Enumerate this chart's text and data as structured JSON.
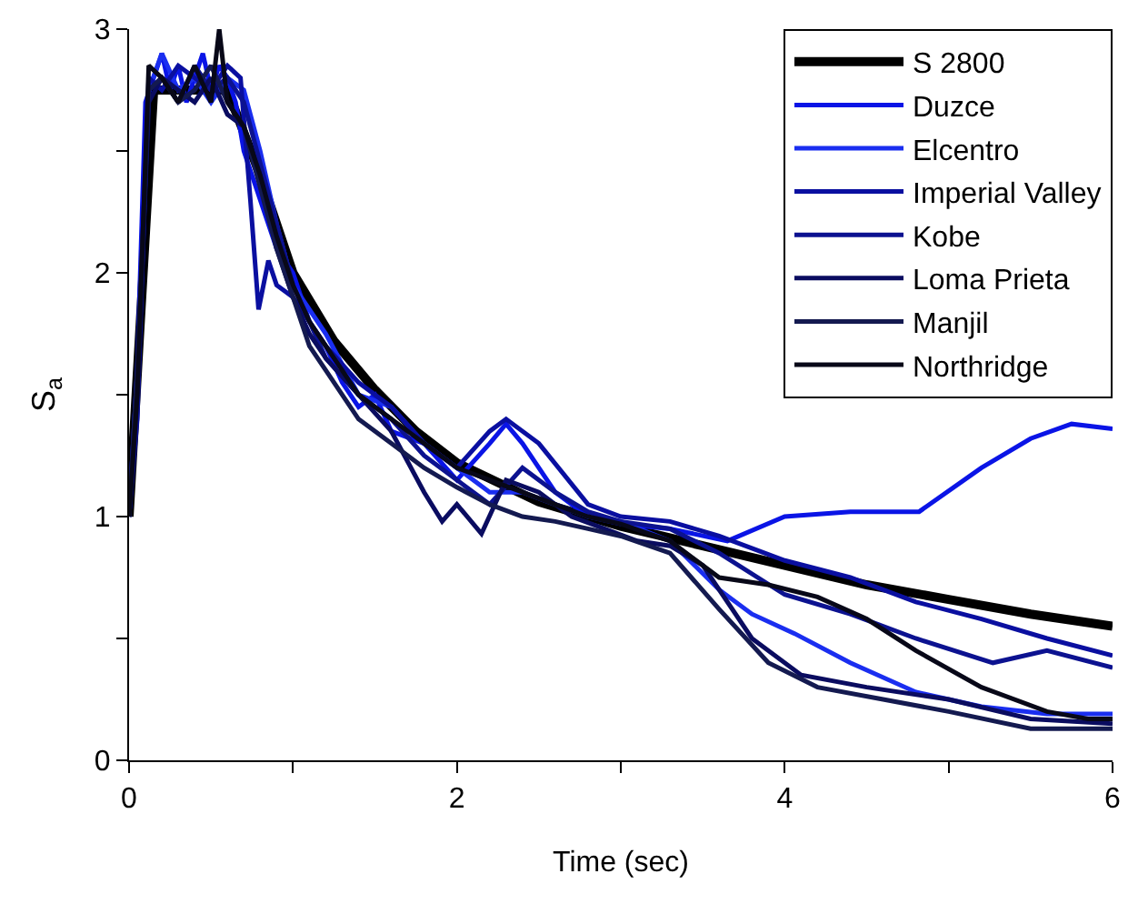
{
  "chart_data": {
    "type": "line",
    "xlabel": "Time (sec)",
    "ylabel": "S$_{a}$",
    "xlim": [
      0,
      6
    ],
    "xticks": [
      0,
      {
        "value": 1,
        "label": null
      },
      2,
      {
        "value": 3,
        "label": null
      },
      4,
      {
        "value": 5,
        "label": null
      },
      6
    ],
    "ylim": [
      0,
      3
    ],
    "yticks": [
      0,
      {
        "value": 0.5,
        "label": null
      },
      1,
      {
        "value": 1.5,
        "label": null
      },
      2,
      {
        "value": 2.5,
        "label": null
      },
      3
    ],
    "grid": false,
    "legend": "top right",
    "marker": "none",
    "line_style": "solid",
    "series": [
      {
        "name": "S 2800",
        "color": "#000000",
        "x": [
          0,
          0.15,
          0.6,
          0.8,
          1.0,
          1.25,
          1.5,
          1.75,
          2,
          2.5,
          3,
          3.5,
          4,
          4.5,
          5,
          5.5,
          6
        ],
        "values": [
          1.0,
          2.75,
          2.75,
          2.4,
          2.0,
          1.72,
          1.52,
          1.35,
          1.22,
          1.06,
          0.96,
          0.88,
          0.8,
          0.72,
          0.66,
          0.6,
          0.55
        ]
      },
      {
        "name": "Duzce",
        "color": "#0a14e6",
        "x": [
          0,
          0.05,
          0.1,
          0.15,
          0.2,
          0.25,
          0.3,
          0.35,
          0.4,
          0.45,
          0.5,
          0.55,
          0.6,
          0.65,
          0.7,
          0.8,
          0.9,
          1.0,
          1.1,
          1.2,
          1.3,
          1.4,
          1.5,
          1.6,
          1.8,
          2.0,
          2.2,
          2.3,
          2.4,
          2.6,
          2.8,
          3.0,
          3.3,
          3.65,
          4.0,
          4.4,
          4.82,
          5.2,
          5.5,
          5.75,
          6.0
        ],
        "values": [
          1.0,
          1.6,
          2.7,
          2.8,
          2.9,
          2.75,
          2.85,
          2.7,
          2.8,
          2.9,
          2.75,
          2.85,
          2.8,
          2.7,
          2.5,
          2.3,
          2.1,
          2.0,
          1.8,
          1.7,
          1.55,
          1.45,
          1.5,
          1.35,
          1.3,
          1.15,
          1.3,
          1.38,
          1.3,
          1.1,
          1.0,
          0.97,
          0.95,
          0.9,
          1.0,
          1.02,
          1.02,
          1.2,
          1.32,
          1.38,
          1.36
        ]
      },
      {
        "name": "Elcentro",
        "color": "#1a2ef0",
        "x": [
          0,
          0.05,
          0.12,
          0.2,
          0.3,
          0.4,
          0.5,
          0.6,
          0.7,
          0.8,
          0.9,
          1.0,
          1.2,
          1.4,
          1.6,
          1.8,
          2.0,
          2.2,
          2.4,
          2.6,
          2.8,
          3.0,
          3.3,
          3.6,
          3.8,
          4.06,
          4.4,
          4.8,
          5.2,
          5.6,
          6.0
        ],
        "values": [
          1.0,
          1.5,
          2.75,
          2.9,
          2.75,
          2.8,
          2.7,
          2.8,
          2.75,
          2.5,
          2.2,
          1.95,
          1.75,
          1.5,
          1.45,
          1.3,
          1.2,
          1.1,
          1.1,
          1.05,
          1.0,
          0.98,
          0.9,
          0.7,
          0.6,
          0.52,
          0.4,
          0.28,
          0.22,
          0.19,
          0.19
        ]
      },
      {
        "name": "Imperial Valley",
        "color": "#0a0fa0",
        "x": [
          0,
          0.05,
          0.12,
          0.2,
          0.3,
          0.4,
          0.5,
          0.6,
          0.68,
          0.74,
          0.79,
          0.85,
          0.9,
          1.0,
          1.1,
          1.2,
          1.4,
          1.6,
          1.8,
          2.0,
          2.2,
          2.3,
          2.5,
          2.8,
          3.0,
          3.3,
          3.6,
          4.0,
          4.4,
          4.8,
          5.2,
          5.6,
          6.0
        ],
        "values": [
          1.0,
          1.4,
          2.8,
          2.75,
          2.85,
          2.8,
          2.75,
          2.85,
          2.8,
          2.3,
          1.85,
          2.05,
          1.95,
          1.9,
          1.8,
          1.7,
          1.55,
          1.45,
          1.3,
          1.2,
          1.35,
          1.4,
          1.3,
          1.05,
          1.0,
          0.98,
          0.92,
          0.82,
          0.75,
          0.65,
          0.58,
          0.5,
          0.43
        ]
      },
      {
        "name": "Kobe",
        "color": "#0c1290",
        "x": [
          0,
          0.05,
          0.12,
          0.2,
          0.3,
          0.4,
          0.5,
          0.6,
          0.7,
          0.8,
          0.9,
          1.0,
          1.1,
          1.2,
          1.4,
          1.6,
          1.8,
          2.0,
          2.2,
          2.4,
          2.6,
          2.8,
          3.0,
          3.3,
          3.6,
          4.0,
          4.4,
          4.8,
          5.27,
          5.6,
          6.0
        ],
        "values": [
          1.0,
          1.6,
          2.75,
          2.8,
          2.7,
          2.85,
          2.75,
          2.8,
          2.7,
          2.45,
          2.2,
          1.95,
          1.8,
          1.65,
          1.5,
          1.4,
          1.25,
          1.15,
          1.05,
          1.2,
          1.1,
          1.02,
          0.98,
          0.95,
          0.85,
          0.68,
          0.6,
          0.5,
          0.4,
          0.45,
          0.38
        ]
      },
      {
        "name": "Loma Prieta",
        "color": "#0a0c60",
        "x": [
          0,
          0.05,
          0.12,
          0.2,
          0.3,
          0.4,
          0.5,
          0.6,
          0.7,
          0.8,
          0.9,
          1.0,
          1.1,
          1.2,
          1.4,
          1.6,
          1.8,
          1.91,
          2.0,
          2.15,
          2.3,
          2.5,
          2.7,
          2.9,
          3.1,
          3.3,
          3.5,
          3.8,
          4.1,
          4.5,
          5.0,
          5.5,
          6.0
        ],
        "values": [
          1.0,
          1.5,
          2.7,
          2.8,
          2.75,
          2.7,
          2.8,
          2.65,
          2.6,
          2.4,
          2.1,
          1.9,
          1.75,
          1.65,
          1.5,
          1.35,
          1.1,
          0.98,
          1.05,
          0.93,
          1.15,
          1.1,
          1.0,
          0.95,
          0.9,
          0.88,
          0.8,
          0.5,
          0.35,
          0.3,
          0.25,
          0.17,
          0.15
        ]
      },
      {
        "name": "Manjil",
        "color": "#141a50",
        "x": [
          0,
          0.05,
          0.12,
          0.2,
          0.3,
          0.4,
          0.5,
          0.6,
          0.7,
          0.8,
          0.9,
          1.0,
          1.1,
          1.2,
          1.4,
          1.6,
          1.8,
          2.0,
          2.2,
          2.4,
          2.6,
          2.8,
          3.0,
          3.3,
          3.6,
          3.9,
          4.2,
          4.6,
          5.0,
          5.5,
          6.0
        ],
        "values": [
          1.0,
          1.6,
          2.75,
          2.8,
          2.7,
          2.75,
          2.85,
          2.7,
          2.6,
          2.35,
          2.1,
          1.9,
          1.7,
          1.6,
          1.4,
          1.3,
          1.2,
          1.12,
          1.05,
          1.0,
          0.98,
          0.95,
          0.92,
          0.85,
          0.62,
          0.4,
          0.3,
          0.25,
          0.2,
          0.13,
          0.13
        ]
      },
      {
        "name": "Northridge",
        "color": "#080818",
        "x": [
          0,
          0.05,
          0.12,
          0.2,
          0.3,
          0.4,
          0.5,
          0.55,
          0.6,
          0.7,
          0.8,
          0.9,
          1.0,
          1.1,
          1.2,
          1.4,
          1.6,
          1.8,
          2.0,
          2.2,
          2.4,
          2.6,
          2.8,
          3.0,
          3.3,
          3.6,
          3.9,
          4.2,
          4.5,
          4.8,
          5.2,
          5.6,
          5.85,
          6.0
        ],
        "values": [
          1.0,
          1.5,
          2.85,
          2.8,
          2.7,
          2.85,
          2.7,
          3.0,
          2.7,
          2.6,
          2.4,
          2.15,
          1.95,
          1.8,
          1.7,
          1.5,
          1.4,
          1.3,
          1.2,
          1.15,
          1.1,
          1.05,
          1.0,
          0.97,
          0.9,
          0.75,
          0.72,
          0.67,
          0.58,
          0.45,
          0.3,
          0.2,
          0.17,
          0.17
        ]
      }
    ]
  }
}
